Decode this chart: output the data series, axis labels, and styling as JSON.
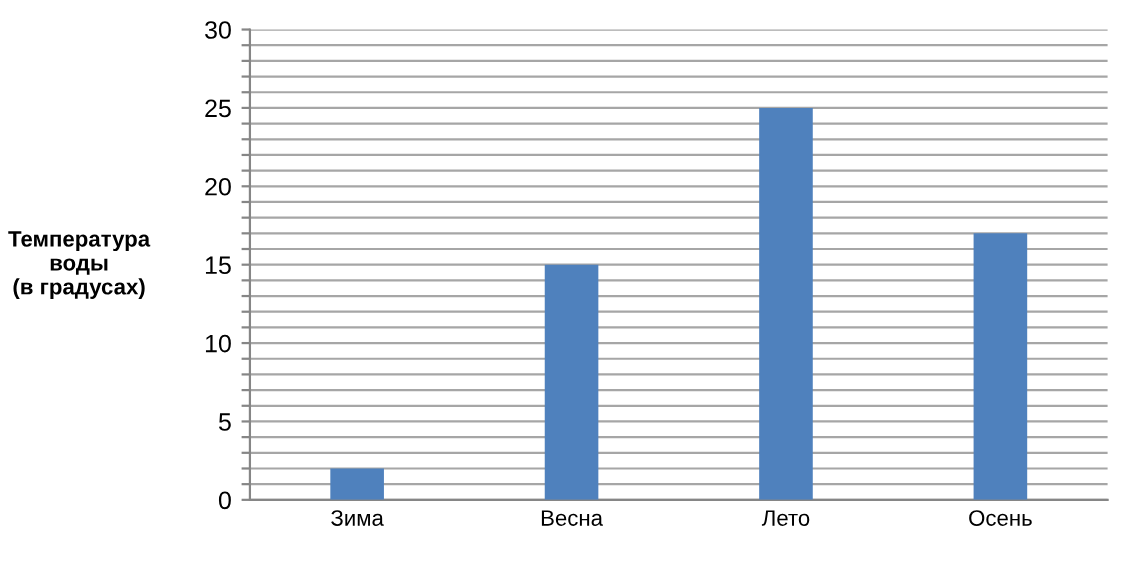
{
  "chart_data": {
    "type": "bar",
    "ylabel": "Температура\nводы\n(в градусах)",
    "categories": [
      "Зима",
      "Весна",
      "Лето",
      "Осень"
    ],
    "values": [
      2,
      15,
      25,
      17
    ],
    "color": "#4f81bd",
    "ylim": [
      0,
      30
    ],
    "yticks": [
      0,
      {
        "value": 1,
        "label": null
      },
      {
        "value": 2,
        "label": null
      },
      {
        "value": 3,
        "label": null
      },
      {
        "value": 4,
        "label": null
      },
      5,
      {
        "value": 6,
        "label": null
      },
      {
        "value": 7,
        "label": null
      },
      {
        "value": 8,
        "label": null
      },
      {
        "value": 9,
        "label": null
      },
      10,
      {
        "value": 11,
        "label": null
      },
      {
        "value": 12,
        "label": null
      },
      {
        "value": 13,
        "label": null
      },
      {
        "value": 14,
        "label": null
      },
      15,
      {
        "value": 16,
        "label": null
      },
      {
        "value": 17,
        "label": null
      },
      {
        "value": 18,
        "label": null
      },
      {
        "value": 19,
        "label": null
      },
      20,
      {
        "value": 21,
        "label": null
      },
      {
        "value": 22,
        "label": null
      },
      {
        "value": 23,
        "label": null
      },
      {
        "value": 24,
        "label": null
      },
      25,
      {
        "value": 26,
        "label": null
      },
      {
        "value": 27,
        "label": null
      },
      {
        "value": 28,
        "label": null
      },
      {
        "value": 29,
        "label": null
      },
      30
    ],
    "grid": "y"
  }
}
